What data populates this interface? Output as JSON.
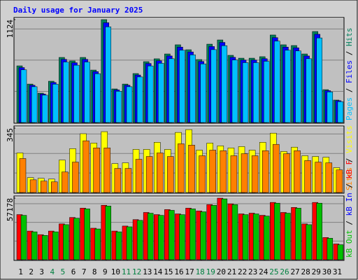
{
  "chart_data": {
    "type": "bar",
    "title": "Daily usage for January 2025",
    "categories": [
      "1",
      "2",
      "3",
      "4",
      "5",
      "6",
      "7",
      "8",
      "9",
      "10",
      "11",
      "12",
      "13",
      "14",
      "15",
      "16",
      "17",
      "18",
      "19",
      "20",
      "21",
      "22",
      "23",
      "24",
      "25",
      "26",
      "27",
      "28",
      "29",
      "30",
      "31"
    ],
    "category_colors": [
      "#000000",
      "#000000",
      "#000000",
      "#008040",
      "#008040",
      "#000000",
      "#000000",
      "#000000",
      "#000000",
      "#000000",
      "#008040",
      "#008040",
      "#000000",
      "#000000",
      "#000000",
      "#000000",
      "#000000",
      "#008040",
      "#008040",
      "#000000",
      "#000000",
      "#000000",
      "#000000",
      "#000000",
      "#008040",
      "#008040",
      "#000000",
      "#000000",
      "#000000",
      "#000000",
      "#000000"
    ],
    "legend_separator": " / ",
    "panels": [
      {
        "ylim": [
          0,
          1124
        ],
        "yticks": [
          1124
        ],
        "series": [
          {
            "name": "Hits",
            "color": "#00805c",
            "values": [
              619,
              420,
              321,
              451,
              711,
              673,
              711,
              573,
              1124,
              367,
              420,
              535,
              665,
              696,
              749,
              849,
              795,
              688,
              856,
              902,
              734,
              703,
              703,
              719,
              956,
              849,
              841,
              749,
              994,
              359,
              245
            ]
          },
          {
            "name": "Files",
            "color": "#0000ff",
            "values": [
              600,
              407,
              311,
              437,
              690,
              653,
              690,
              556,
              1090,
              356,
              407,
              519,
              645,
              675,
              727,
              824,
              771,
              667,
              830,
              875,
              712,
              682,
              682,
              697,
              927,
              824,
              816,
              727,
              964,
              348,
              238
            ]
          },
          {
            "name": "Pages",
            "color": "#00c0ff",
            "values": [
              576,
              391,
              299,
              419,
              661,
              626,
              661,
              533,
              1045,
              341,
              391,
              498,
              618,
              647,
              697,
              790,
              739,
              640,
              796,
              839,
              683,
              654,
              654,
              669,
              889,
              790,
              782,
              697,
              924,
              334,
              228
            ]
          }
        ]
      },
      {
        "ylim": [
          0,
          345
        ],
        "yticks": [
          345
        ],
        "series": [
          {
            "name": "Visits",
            "color": "#ffff00",
            "values": [
              212,
              80,
              76,
              72,
              174,
              235,
              315,
              265,
              326,
              155,
              159,
              231,
              231,
              269,
              231,
              322,
              337,
              227,
              265,
              250,
              239,
              246,
              227,
              269,
              318,
              220,
              243,
              197,
              193,
              189,
              133
            ]
          },
          {
            "name": "Sites",
            "color": "#ff8000",
            "values": [
              182,
              68,
              61,
              57,
              110,
              163,
              277,
              239,
              239,
              129,
              129,
              178,
              193,
              212,
              193,
              261,
              254,
              197,
              227,
              224,
              197,
              208,
              197,
              224,
              258,
              208,
              224,
              171,
              163,
              159,
              121
            ]
          }
        ]
      },
      {
        "ylim": [
          0,
          57178
        ],
        "yticks": [
          57178
        ],
        "series": [
          {
            "name": "kB F",
            "color": "#ff0000",
            "values": [
              41887,
              26595,
              23271,
              26595,
              33245,
              39229,
              47871,
              29254,
              50530,
              26595,
              31250,
              37232,
              43880,
              41887,
              46541,
              42552,
              47871,
              45212,
              51195,
              57178,
              51860,
              42552,
              43216,
              41222,
              53190,
              43880,
              48536,
              33245,
              53190,
              20611,
              14627
            ]
          },
          {
            "name": "kB In",
            "color": "#0000ff",
            "values": [
              null,
              null,
              null,
              null,
              null,
              null,
              null,
              null,
              null,
              null,
              null,
              null,
              null,
              null,
              null,
              null,
              null,
              null,
              null,
              null,
              null,
              null,
              null,
              null,
              null,
              null,
              null,
              null,
              null,
              null,
              null
            ]
          },
          {
            "name": "kB Out",
            "color": "#00c000",
            "values": [
              41187,
              25895,
              22571,
              25895,
              32545,
              38529,
              47171,
              28554,
              49830,
              25895,
              30550,
              36532,
              43180,
              41187,
              45841,
              41852,
              47171,
              44512,
              50495,
              56478,
              51160,
              41852,
              42516,
              40522,
              52490,
              43180,
              47836,
              32545,
              52490,
              19911,
              13927
            ]
          }
        ]
      }
    ]
  }
}
